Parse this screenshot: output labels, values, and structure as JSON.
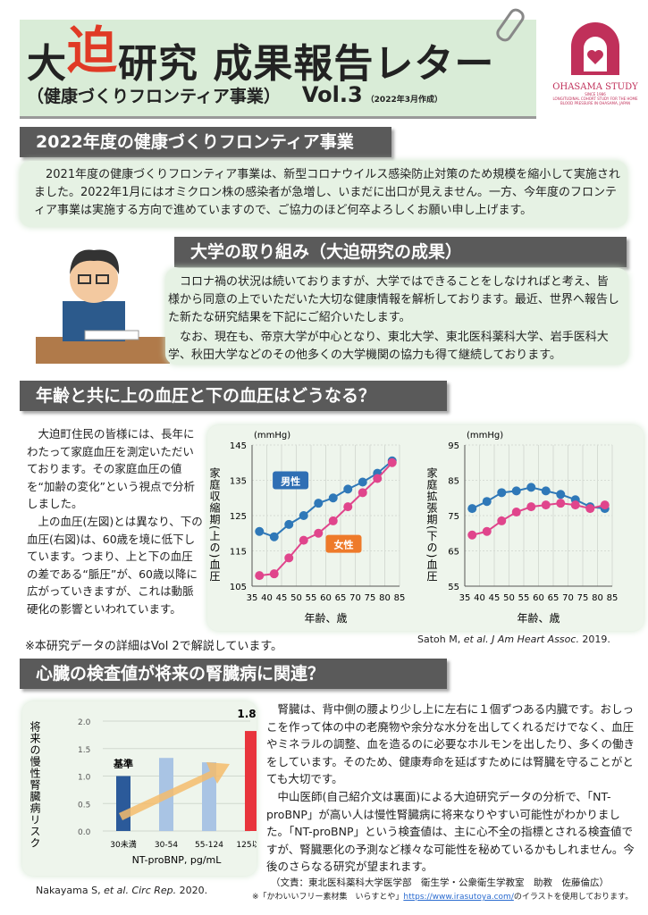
{
  "header": {
    "title_pre": "大",
    "title_accent": "迫",
    "title_post": "研究 成果報告レター",
    "subtitle": "（健康づくりフロンティア事業）",
    "volume": "Vol.3",
    "date": "（2022年3月作成）"
  },
  "logo": {
    "name": "OHASAMA STUDY",
    "since": "SINCE 1986",
    "desc": "LONGITUDINAL COHORT STUDY FOR THE HOME BLOOD PRESSURE IN OHASAMA, JAPAN"
  },
  "section1": {
    "title": "2022年度の健康づくりフロンティア事業",
    "body": "2021年度の健康づくりフロンティア事業は、新型コロナウイルス感染防止対策のため規模を縮小して実施されました。2022年1月にはオミクロン株の感染者が急増し、いまだに出口が見えません。一方、今年度のフロンティア事業は実施する方向で進めていますので、ご協力のほど何卒よろしくお願い申し上げます。"
  },
  "section2": {
    "title": "大学の取り組み（大迫研究の成果）",
    "p1": "コロナ禍の状況は続いておりますが、大学ではできることをしなければと考え、皆様から同意の上でいただいた大切な健康情報を解析しております。最近、世界へ報告した新たな研究結果を下記にご紹介いたします。",
    "p2": "なお、現在も、帝京大学が中心となり、東北大学、東北医科薬科大学、岩手医科大学、秋田大学などのその他多くの大学機関の協力も得て継続しております。"
  },
  "section3": {
    "title": "年齢と共に上の血圧と下の血圧はどうなる？",
    "p1": "大迫町住民の皆様には、長年にわたって家庭血圧を測定いただいております。その家庭血圧の値を“加齢の変化”という視点で分析しました。",
    "p2": "上の血圧(左図)とは異なり、下の血圧(右図)は、60歳を境に低下しています。つまり、上と下の血圧の差である“脈圧”が、60歳以降に広がっていきますが、これは動脈硬化の影響といわれています。",
    "note": "※本研究データの詳細はVol 2で解説しています。",
    "citation_pre": "Satoh M, ",
    "citation_it": "et al. J Am Heart Assoc.",
    "citation_post": " 2019."
  },
  "section4": {
    "title": "心臓の検査値が将来の腎臓病に関連？",
    "p1": "腎臓は、背中側の腰より少し上に左右に１個ずつある内臓です。おしっこを作って体の中の老廃物や余分な水分を出してくれるだけでなく、血圧やミネラルの調整、血を造るのに必要なホルモンを出したり、多くの働きをしています。そのため、健康寿命を延ばすためには腎臓を守ることがとても大切です。",
    "p2": "中山医師(自己紹介文は裏面)による大迫研究データの分析で、「NT-proBNP」が高い人は慢性腎臓病に将来なりやすい可能性がわかりました。「NT-proBNP」という検査値は、主に心不全の指標とされる検査値ですが、腎臓悪化の予測など様々な可能性を秘めているかもしれません。今後のさらなる研究が望まれます。",
    "citation_pre": "Nakayama S, ",
    "citation_it": "et al. Circ Rep.",
    "citation_post": " 2020."
  },
  "credits": {
    "author": "（文責：東北医科薬科大学医学部　衛生学・公衆衛生学教室　助教　佐藤倫広）",
    "illust_pre": "※「かわいいフリー素材集　いらすとや」",
    "illust_link": "https://www.irasutoya.com/",
    "illust_post": "のイラストを使用しております。"
  },
  "colors": {
    "male": "#2f78b8",
    "female": "#e0458c",
    "accent": "#e03a25",
    "bar_base": "#2b5a9a",
    "bar_mid": "#a9c4e4",
    "bar_high": "#e8343c"
  },
  "chart_data": [
    {
      "type": "line",
      "title": "",
      "ylabel": "家庭収縮期(上の)血圧",
      "unit": "(mmHg)",
      "xlabel": "年齢、歳",
      "xticks": [
        35,
        40,
        45,
        50,
        55,
        60,
        65,
        70,
        75,
        80,
        85
      ],
      "ylim": [
        105,
        145
      ],
      "yticks": [
        105,
        115,
        125,
        135,
        145
      ],
      "x": [
        37.5,
        42.5,
        47.5,
        52.5,
        57.5,
        62.5,
        67.5,
        72.5,
        77.5,
        82.5
      ],
      "series": [
        {
          "name": "男性",
          "values": [
            120.5,
            119,
            122.5,
            125,
            128.5,
            130,
            132.5,
            134.5,
            137,
            140.5
          ]
        },
        {
          "name": "女性",
          "values": [
            108,
            108.5,
            113,
            118,
            120,
            123.5,
            127.5,
            131.5,
            135.5,
            140
          ]
        }
      ]
    },
    {
      "type": "line",
      "title": "",
      "ylabel": "家庭拡張期(下の)血圧",
      "unit": "(mmHg)",
      "xlabel": "年齢、歳",
      "xticks": [
        35,
        40,
        45,
        50,
        55,
        60,
        65,
        70,
        75,
        80,
        85
      ],
      "ylim": [
        55,
        95
      ],
      "yticks": [
        55,
        65,
        75,
        85,
        95
      ],
      "x": [
        37.5,
        42.5,
        47.5,
        52.5,
        57.5,
        62.5,
        67.5,
        72.5,
        77.5,
        82.5
      ],
      "series": [
        {
          "name": "男性",
          "values": [
            77,
            79,
            81.5,
            82,
            83,
            82,
            81,
            79.5,
            77.5,
            77
          ]
        },
        {
          "name": "女性",
          "values": [
            69.5,
            70.5,
            73.5,
            76,
            77.5,
            78,
            78.5,
            78,
            77,
            78
          ]
        }
      ]
    },
    {
      "type": "bar",
      "ylabel": "将来の慢性腎臓病リスク",
      "xlabel": "NT-proBNP, pg/mL",
      "categories": [
        "30未満",
        "30-54",
        "55-124",
        "125以上"
      ],
      "values": [
        1.0,
        1.33,
        1.25,
        1.82
      ],
      "ylim": [
        0,
        2
      ],
      "yticks": [
        "0.0",
        "0.5",
        "1.0",
        "1.5",
        "2.0"
      ],
      "annotations": [
        "基準",
        "1.8倍"
      ]
    }
  ]
}
